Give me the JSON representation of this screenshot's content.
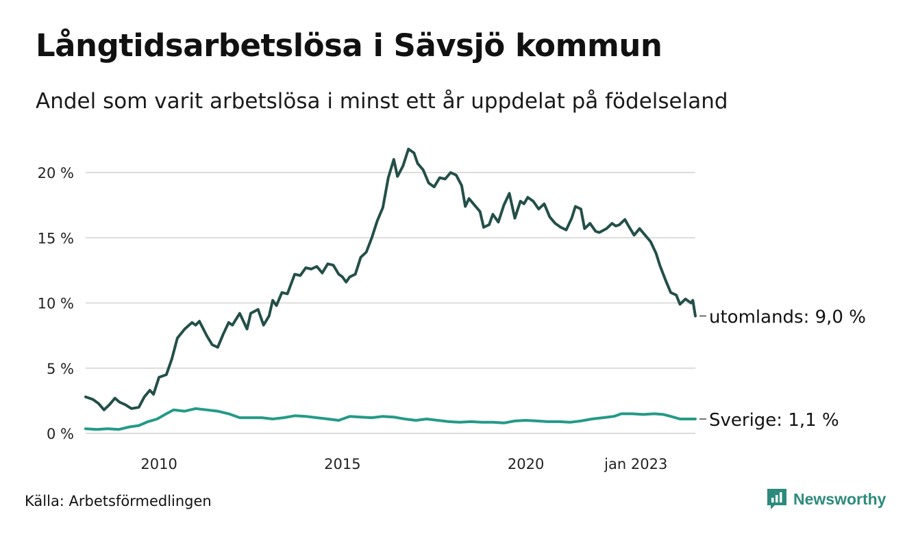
{
  "title": "Långtidsarbetslösa i Sävsjö kommun",
  "subtitle": "Andel som varit arbetslösa i minst ett år uppdelat på födelseland",
  "source": "Källa: Arbetsförmedlingen",
  "brand": "Newsworthy",
  "colors": {
    "utomlands": "#234f48",
    "sverige": "#239a87",
    "grid": "#dcdcdc",
    "brand": "#2c8b7c"
  },
  "chart_data": {
    "type": "line",
    "x_start": "2008-01",
    "x_end": "2023-01",
    "ylim": [
      0,
      22
    ],
    "y_ticks": [
      0,
      5,
      10,
      15,
      20
    ],
    "y_tick_labels": [
      "0 %",
      "5 %",
      "10 %",
      "15 %",
      "20 %"
    ],
    "x_ticks": [
      "2010",
      "2015",
      "2020",
      "jan 2023"
    ],
    "x_tick_dates": [
      2010.0,
      2015.0,
      2020.0,
      2023.0
    ],
    "grid": true,
    "legend": "end-of-line labels",
    "series": [
      {
        "key": "utomlands",
        "name": "utomlands",
        "end_label": "utomlands: 9,0 %",
        "points": [
          [
            2008.0,
            2.8
          ],
          [
            2008.2,
            2.6
          ],
          [
            2008.35,
            2.3
          ],
          [
            2008.5,
            1.8
          ],
          [
            2008.65,
            2.2
          ],
          [
            2008.8,
            2.7
          ],
          [
            2008.92,
            2.4
          ],
          [
            2009.08,
            2.2
          ],
          [
            2009.25,
            1.9
          ],
          [
            2009.45,
            2.0
          ],
          [
            2009.6,
            2.8
          ],
          [
            2009.75,
            3.3
          ],
          [
            2009.85,
            3.0
          ],
          [
            2010.0,
            4.3
          ],
          [
            2010.2,
            4.5
          ],
          [
            2010.35,
            5.7
          ],
          [
            2010.5,
            7.3
          ],
          [
            2010.7,
            8.0
          ],
          [
            2010.9,
            8.5
          ],
          [
            2011.0,
            8.3
          ],
          [
            2011.1,
            8.6
          ],
          [
            2011.3,
            7.5
          ],
          [
            2011.45,
            6.8
          ],
          [
            2011.6,
            6.6
          ],
          [
            2011.75,
            7.6
          ],
          [
            2011.9,
            8.5
          ],
          [
            2012.0,
            8.3
          ],
          [
            2012.2,
            9.2
          ],
          [
            2012.4,
            8.0
          ],
          [
            2012.5,
            9.2
          ],
          [
            2012.7,
            9.5
          ],
          [
            2012.85,
            8.3
          ],
          [
            2013.0,
            9.0
          ],
          [
            2013.1,
            10.2
          ],
          [
            2013.2,
            9.8
          ],
          [
            2013.35,
            10.8
          ],
          [
            2013.5,
            10.7
          ],
          [
            2013.7,
            12.2
          ],
          [
            2013.85,
            12.1
          ],
          [
            2014.0,
            12.7
          ],
          [
            2014.15,
            12.6
          ],
          [
            2014.3,
            12.8
          ],
          [
            2014.45,
            12.3
          ],
          [
            2014.6,
            13.0
          ],
          [
            2014.75,
            12.9
          ],
          [
            2014.9,
            12.2
          ],
          [
            2015.0,
            12.0
          ],
          [
            2015.1,
            11.6
          ],
          [
            2015.2,
            12.0
          ],
          [
            2015.35,
            12.2
          ],
          [
            2015.5,
            13.5
          ],
          [
            2015.65,
            13.9
          ],
          [
            2015.8,
            15.0
          ],
          [
            2015.95,
            16.3
          ],
          [
            2016.1,
            17.3
          ],
          [
            2016.25,
            19.6
          ],
          [
            2016.4,
            21.0
          ],
          [
            2016.5,
            19.7
          ],
          [
            2016.65,
            20.5
          ],
          [
            2016.8,
            21.8
          ],
          [
            2016.95,
            21.5
          ],
          [
            2017.05,
            20.7
          ],
          [
            2017.2,
            20.2
          ],
          [
            2017.35,
            19.2
          ],
          [
            2017.5,
            18.9
          ],
          [
            2017.65,
            19.6
          ],
          [
            2017.8,
            19.5
          ],
          [
            2017.95,
            20.0
          ],
          [
            2018.1,
            19.8
          ],
          [
            2018.25,
            19.0
          ],
          [
            2018.35,
            17.4
          ],
          [
            2018.45,
            18.0
          ],
          [
            2018.6,
            17.5
          ],
          [
            2018.75,
            17.0
          ],
          [
            2018.85,
            15.8
          ],
          [
            2019.0,
            16.0
          ],
          [
            2019.1,
            16.8
          ],
          [
            2019.25,
            16.2
          ],
          [
            2019.4,
            17.5
          ],
          [
            2019.55,
            18.4
          ],
          [
            2019.7,
            16.5
          ],
          [
            2019.85,
            17.8
          ],
          [
            2019.95,
            17.6
          ],
          [
            2020.05,
            18.1
          ],
          [
            2020.2,
            17.8
          ],
          [
            2020.35,
            17.2
          ],
          [
            2020.5,
            17.6
          ],
          [
            2020.65,
            16.6
          ],
          [
            2020.8,
            16.1
          ],
          [
            2020.95,
            15.8
          ],
          [
            2021.1,
            15.6
          ],
          [
            2021.25,
            16.5
          ],
          [
            2021.35,
            17.4
          ],
          [
            2021.5,
            17.2
          ],
          [
            2021.6,
            15.7
          ],
          [
            2021.75,
            16.1
          ],
          [
            2021.9,
            15.5
          ],
          [
            2022.0,
            15.4
          ],
          [
            2022.2,
            15.7
          ],
          [
            2022.35,
            16.1
          ],
          [
            2022.45,
            15.9
          ],
          [
            2022.55,
            16.0
          ],
          [
            2022.7,
            16.4
          ],
          [
            2022.8,
            15.9
          ],
          [
            2022.95,
            15.2
          ],
          [
            2023.1,
            15.7
          ],
          [
            2023.25,
            15.2
          ],
          [
            2023.4,
            14.7
          ],
          [
            2023.55,
            13.8
          ],
          [
            2023.65,
            12.9
          ],
          [
            2023.8,
            11.8
          ],
          [
            2023.95,
            10.8
          ],
          [
            2024.1,
            10.6
          ],
          [
            2024.2,
            9.9
          ],
          [
            2024.35,
            10.3
          ],
          [
            2024.5,
            10.0
          ],
          [
            2024.55,
            10.2
          ],
          [
            2024.62,
            9.0
          ]
        ]
      },
      {
        "key": "sverige",
        "name": "Sverige",
        "end_label": "Sverige: 1,1 %",
        "points": [
          [
            2008.0,
            0.35
          ],
          [
            2008.3,
            0.3
          ],
          [
            2008.6,
            0.35
          ],
          [
            2008.9,
            0.3
          ],
          [
            2009.2,
            0.5
          ],
          [
            2009.45,
            0.6
          ],
          [
            2009.7,
            0.9
          ],
          [
            2009.95,
            1.1
          ],
          [
            2010.2,
            1.5
          ],
          [
            2010.4,
            1.8
          ],
          [
            2010.7,
            1.7
          ],
          [
            2011.0,
            1.9
          ],
          [
            2011.3,
            1.8
          ],
          [
            2011.6,
            1.7
          ],
          [
            2011.9,
            1.5
          ],
          [
            2012.2,
            1.2
          ],
          [
            2012.5,
            1.2
          ],
          [
            2012.8,
            1.2
          ],
          [
            2013.1,
            1.1
          ],
          [
            2013.4,
            1.2
          ],
          [
            2013.7,
            1.35
          ],
          [
            2014.0,
            1.3
          ],
          [
            2014.3,
            1.2
          ],
          [
            2014.6,
            1.1
          ],
          [
            2014.9,
            1.0
          ],
          [
            2015.2,
            1.3
          ],
          [
            2015.5,
            1.25
          ],
          [
            2015.8,
            1.2
          ],
          [
            2016.1,
            1.3
          ],
          [
            2016.4,
            1.25
          ],
          [
            2016.7,
            1.1
          ],
          [
            2017.0,
            1.0
          ],
          [
            2017.3,
            1.1
          ],
          [
            2017.6,
            1.0
          ],
          [
            2017.9,
            0.9
          ],
          [
            2018.2,
            0.85
          ],
          [
            2018.5,
            0.9
          ],
          [
            2018.8,
            0.85
          ],
          [
            2019.1,
            0.85
          ],
          [
            2019.4,
            0.8
          ],
          [
            2019.7,
            0.95
          ],
          [
            2020.0,
            1.0
          ],
          [
            2020.3,
            0.95
          ],
          [
            2020.6,
            0.9
          ],
          [
            2020.9,
            0.9
          ],
          [
            2021.2,
            0.85
          ],
          [
            2021.5,
            0.95
          ],
          [
            2021.8,
            1.1
          ],
          [
            2022.1,
            1.2
          ],
          [
            2022.4,
            1.3
          ],
          [
            2022.6,
            1.5
          ],
          [
            2022.9,
            1.5
          ],
          [
            2023.2,
            1.45
          ],
          [
            2023.5,
            1.5
          ],
          [
            2023.75,
            1.45
          ],
          [
            2023.95,
            1.3
          ],
          [
            2024.2,
            1.1
          ],
          [
            2024.4,
            1.1
          ],
          [
            2024.55,
            1.1
          ],
          [
            2024.62,
            1.1
          ]
        ]
      }
    ]
  }
}
